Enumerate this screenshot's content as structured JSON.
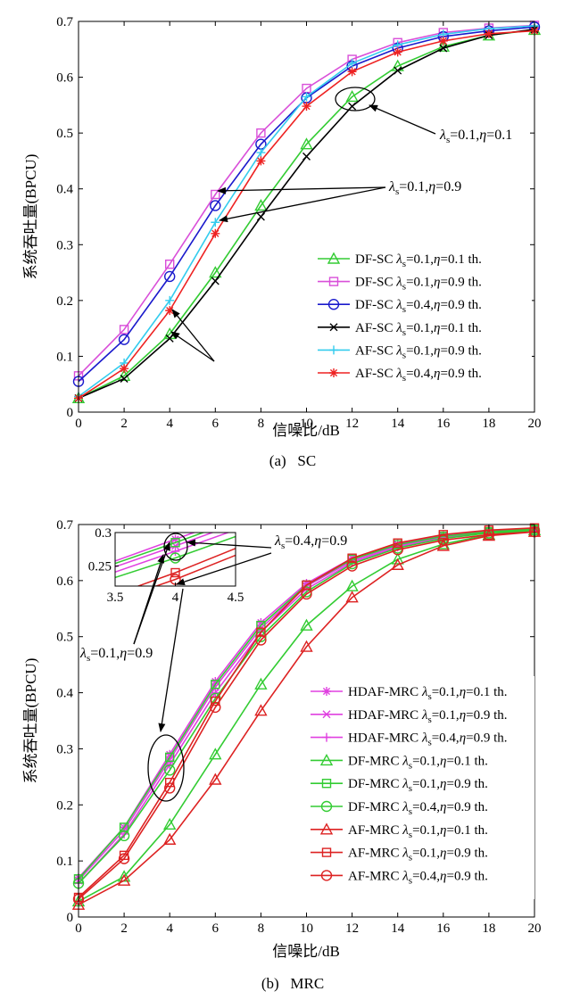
{
  "chart_data": [
    {
      "type": "line",
      "caption": "(a)   SC",
      "xlabel": "信噪比/dB",
      "ylabel": "系统吞吐量(BPCU)",
      "xlim": [
        0,
        20
      ],
      "ylim": [
        0,
        0.7
      ],
      "xticks": [
        0,
        2,
        4,
        6,
        8,
        10,
        12,
        14,
        16,
        18,
        20
      ],
      "yticks": [
        0,
        0.1,
        0.2,
        0.3,
        0.4,
        0.5,
        0.6,
        0.7
      ],
      "ytick_labels": [
        "0",
        "0.1",
        "0.2",
        "0.3",
        "0.4",
        "0.5",
        "0.6",
        "0.7"
      ],
      "grid": false,
      "legend_position": "bottom-right",
      "x": [
        0,
        2,
        4,
        6,
        8,
        10,
        12,
        14,
        16,
        18,
        20
      ],
      "series": [
        {
          "name": "DF-SC",
          "lambda_s": "0.1",
          "eta": "0.1",
          "color": "#33cc33",
          "marker": "triangle",
          "values": [
            0.025,
            0.065,
            0.14,
            0.25,
            0.37,
            0.48,
            0.565,
            0.62,
            0.655,
            0.675,
            0.685
          ]
        },
        {
          "name": "DF-SC",
          "lambda_s": "0.1",
          "eta": "0.9",
          "color": "#d94fd9",
          "marker": "square",
          "values": [
            0.065,
            0.148,
            0.265,
            0.39,
            0.5,
            0.58,
            0.632,
            0.662,
            0.68,
            0.688,
            0.693
          ]
        },
        {
          "name": "DF-SC",
          "lambda_s": "0.4",
          "eta": "0.9",
          "color": "#1a1acc",
          "marker": "circle",
          "values": [
            0.055,
            0.13,
            0.243,
            0.37,
            0.48,
            0.563,
            0.62,
            0.652,
            0.673,
            0.683,
            0.69
          ]
        },
        {
          "name": "AF-SC",
          "lambda_s": "0.1",
          "eta": "0.1",
          "color": "#000000",
          "marker": "x",
          "values": [
            0.025,
            0.06,
            0.132,
            0.235,
            0.35,
            0.458,
            0.548,
            0.612,
            0.652,
            0.675,
            0.686
          ]
        },
        {
          "name": "AF-SC",
          "lambda_s": "0.1",
          "eta": "0.9",
          "color": "#33ccee",
          "marker": "plus",
          "values": [
            0.028,
            0.088,
            0.2,
            0.34,
            0.465,
            0.565,
            0.625,
            0.658,
            0.677,
            0.687,
            0.692
          ]
        },
        {
          "name": "AF-SC",
          "lambda_s": "0.4",
          "eta": "0.9",
          "color": "#ee2222",
          "marker": "star",
          "values": [
            0.025,
            0.078,
            0.182,
            0.32,
            0.45,
            0.548,
            0.61,
            0.645,
            0.665,
            0.678,
            0.683
          ]
        }
      ],
      "annotations": [
        {
          "lambda_s": "0.1",
          "eta": "0.1"
        },
        {
          "lambda_s": "0.1",
          "eta": "0.9"
        }
      ]
    },
    {
      "type": "line",
      "caption": "(b)   MRC",
      "xlabel": "信噪比/dB",
      "ylabel": "系统吞吐量(BPCU)",
      "xlim": [
        0,
        20
      ],
      "ylim": [
        0,
        0.7
      ],
      "xticks": [
        0,
        2,
        4,
        6,
        8,
        10,
        12,
        14,
        16,
        18,
        20
      ],
      "yticks": [
        0,
        0.1,
        0.2,
        0.3,
        0.4,
        0.5,
        0.6,
        0.7
      ],
      "ytick_labels": [
        "0",
        "0.1",
        "0.2",
        "0.3",
        "0.4",
        "0.5",
        "0.6",
        "0.7"
      ],
      "grid": false,
      "legend_position": "bottom-right",
      "x": [
        0,
        2,
        4,
        6,
        8,
        10,
        12,
        14,
        16,
        18,
        20
      ],
      "series": [
        {
          "name": "HDAF-MRC",
          "lambda_s": "0.1",
          "eta": "0.1",
          "color": "#e040e0",
          "marker": "star",
          "values": [
            0.07,
            0.16,
            0.29,
            0.42,
            0.525,
            0.595,
            0.64,
            0.665,
            0.68,
            0.688,
            0.692
          ]
        },
        {
          "name": "HDAF-MRC",
          "lambda_s": "0.1",
          "eta": "0.9",
          "color": "#e040e0",
          "marker": "x",
          "values": [
            0.065,
            0.155,
            0.28,
            0.41,
            0.515,
            0.59,
            0.635,
            0.662,
            0.678,
            0.687,
            0.691
          ]
        },
        {
          "name": "HDAF-MRC",
          "lambda_s": "0.4",
          "eta": "0.9",
          "color": "#e040e0",
          "marker": "plus",
          "values": [
            0.06,
            0.148,
            0.272,
            0.4,
            0.508,
            0.585,
            0.632,
            0.66,
            0.676,
            0.686,
            0.69
          ]
        },
        {
          "name": "DF-MRC",
          "lambda_s": "0.1",
          "eta": "0.1",
          "color": "#33cc33",
          "marker": "triangle",
          "values": [
            0.028,
            0.072,
            0.165,
            0.29,
            0.415,
            0.52,
            0.59,
            0.638,
            0.665,
            0.682,
            0.69
          ]
        },
        {
          "name": "DF-MRC",
          "lambda_s": "0.1",
          "eta": "0.9",
          "color": "#33cc33",
          "marker": "square",
          "values": [
            0.068,
            0.16,
            0.285,
            0.415,
            0.52,
            0.592,
            0.638,
            0.664,
            0.679,
            0.687,
            0.692
          ]
        },
        {
          "name": "DF-MRC",
          "lambda_s": "0.4",
          "eta": "0.9",
          "color": "#33cc33",
          "marker": "circle",
          "values": [
            0.06,
            0.145,
            0.262,
            0.39,
            0.5,
            0.58,
            0.63,
            0.658,
            0.675,
            0.685,
            0.69
          ]
        },
        {
          "name": "AF-MRC",
          "lambda_s": "0.1",
          "eta": "0.1",
          "color": "#dd2222",
          "marker": "triangle",
          "values": [
            0.022,
            0.065,
            0.138,
            0.245,
            0.368,
            0.482,
            0.57,
            0.628,
            0.662,
            0.68,
            0.687
          ]
        },
        {
          "name": "AF-MRC",
          "lambda_s": "0.1",
          "eta": "0.9",
          "color": "#dd2222",
          "marker": "square",
          "values": [
            0.035,
            0.11,
            0.24,
            0.385,
            0.508,
            0.592,
            0.64,
            0.667,
            0.682,
            0.69,
            0.694
          ]
        },
        {
          "name": "AF-MRC",
          "lambda_s": "0.4",
          "eta": "0.9",
          "color": "#dd2222",
          "marker": "circle",
          "values": [
            0.032,
            0.104,
            0.23,
            0.374,
            0.494,
            0.576,
            0.626,
            0.655,
            0.672,
            0.682,
            0.687
          ]
        }
      ],
      "inset": {
        "xlim": [
          3.5,
          4.5
        ],
        "ylim": [
          0.22,
          0.3
        ],
        "xticks": [
          "3.5",
          "4",
          "4.5"
        ],
        "yticks": [
          "0.25",
          "0.3"
        ]
      },
      "annotations": [
        {
          "lambda_s": "0.4",
          "eta": "0.9"
        },
        {
          "lambda_s": "0.1",
          "eta": "0.9"
        }
      ]
    }
  ]
}
